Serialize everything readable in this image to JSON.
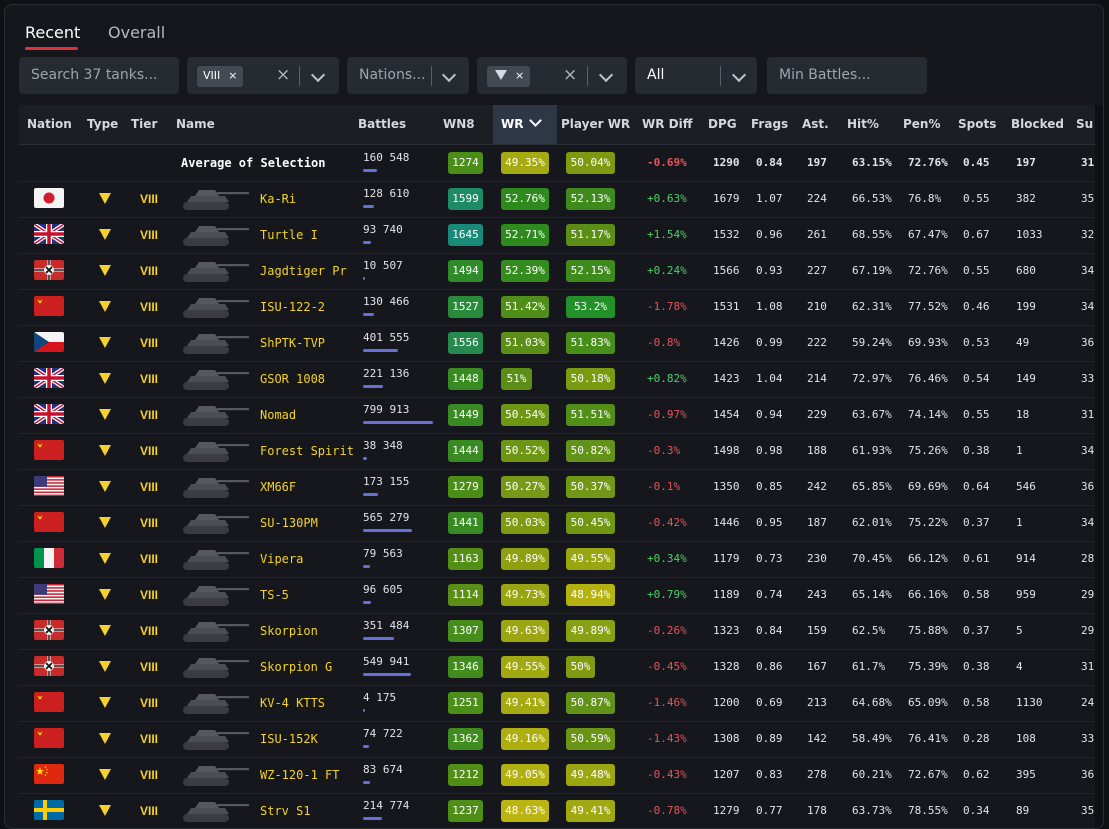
{
  "tabs": [
    "Recent",
    "Overall"
  ],
  "filters": {
    "search_placeholder": "Search 37 tanks...",
    "tier_chip": "VIII",
    "chip_remove": "×",
    "clear": "×",
    "nations_placeholder": "Nations...",
    "type_chip_x": "×",
    "premium_value": "All",
    "min_battles_placeholder": "Min Battles..."
  },
  "columns": [
    "Nation",
    "Type",
    "Tier",
    "Name",
    "Battles",
    "WN8",
    "WR",
    "Player WR",
    "WR Diff",
    "DPG",
    "Frags",
    "Ast.",
    "Hit%",
    "Pen%",
    "Spots",
    "Blocked",
    "Su"
  ],
  "sorted_column": "WR",
  "average": {
    "label": "Average of Selection",
    "battles": "160 548",
    "battles_frac": 0.2,
    "wn8": "1274",
    "wr": "49.35%",
    "pwr": "50.04%",
    "wrdiff": "-0.69%",
    "dpg": "1290",
    "frags": "0.84",
    "ast": "197",
    "hit": "63.15%",
    "pen": "72.76%",
    "spots": "0.45",
    "blocked": "197",
    "su": "31"
  },
  "rows": [
    {
      "nation": "japan",
      "name": "Ka-Ri",
      "tier": "VIII",
      "battles": "128 610",
      "battles_frac": 0.16,
      "wn8": "1599",
      "wn8_color": "#1e8a66",
      "wr": "52.76%",
      "wr_color": "#2f8a1e",
      "pwr": "52.13%",
      "pwr_color": "#3e8a1c",
      "wrdiff": "+0.63%",
      "dpg": "1679",
      "frags": "1.07",
      "ast": "224",
      "hit": "66.53%",
      "pen": "76.8%",
      "spots": "0.55",
      "blocked": "382",
      "su": "35"
    },
    {
      "nation": "uk",
      "name": "Turtle I",
      "tier": "VIII",
      "battles": "93 740",
      "battles_frac": 0.12,
      "wn8": "1645",
      "wn8_color": "#1a8a78",
      "wr": "52.71%",
      "wr_color": "#2f8a1e",
      "pwr": "51.17%",
      "pwr_color": "#5a8e16",
      "wrdiff": "+1.54%",
      "dpg": "1532",
      "frags": "0.96",
      "ast": "261",
      "hit": "68.55%",
      "pen": "67.47%",
      "spots": "0.67",
      "blocked": "1033",
      "su": "32"
    },
    {
      "nation": "germany",
      "name": "Jagdtiger Pr",
      "tier": "VIII",
      "battles": "10 507",
      "battles_frac": 0.013,
      "wn8": "1494",
      "wn8_color": "#2f8a2a",
      "wr": "52.39%",
      "wr_color": "#358c1e",
      "pwr": "52.15%",
      "pwr_color": "#3e8a1c",
      "wrdiff": "+0.24%",
      "dpg": "1566",
      "frags": "0.93",
      "ast": "227",
      "hit": "67.19%",
      "pen": "72.76%",
      "spots": "0.55",
      "blocked": "680",
      "su": "34"
    },
    {
      "nation": "ussr",
      "name": "ISU-122-2",
      "tier": "VIII",
      "battles": "130 466",
      "battles_frac": 0.16,
      "wn8": "1527",
      "wn8_color": "#2a8a3c",
      "wr": "51.42%",
      "wr_color": "#4f8e18",
      "pwr": "53.2%",
      "pwr_color": "#23902a",
      "wrdiff": "-1.78%",
      "dpg": "1531",
      "frags": "1.08",
      "ast": "210",
      "hit": "62.31%",
      "pen": "77.52%",
      "spots": "0.46",
      "blocked": "199",
      "su": "34"
    },
    {
      "nation": "czech",
      "name": "ShPTK-TVP",
      "tier": "VIII",
      "battles": "401 555",
      "battles_frac": 0.5,
      "wn8": "1556",
      "wn8_color": "#26894e",
      "wr": "51.03%",
      "wr_color": "#5a8e16",
      "pwr": "51.83%",
      "pwr_color": "#488e1a",
      "wrdiff": "-0.8%",
      "dpg": "1426",
      "frags": "0.99",
      "ast": "222",
      "hit": "59.24%",
      "pen": "69.93%",
      "spots": "0.53",
      "blocked": "49",
      "su": "36"
    },
    {
      "nation": "uk",
      "name": "GSOR 1008",
      "tier": "VIII",
      "battles": "221 136",
      "battles_frac": 0.28,
      "wn8": "1448",
      "wn8_color": "#3a8a24",
      "wr": "51%",
      "wr_color": "#5a8e16",
      "pwr": "50.18%",
      "pwr_color": "#7a9a12",
      "wrdiff": "+0.82%",
      "dpg": "1423",
      "frags": "1.04",
      "ast": "214",
      "hit": "72.97%",
      "pen": "76.46%",
      "spots": "0.54",
      "blocked": "149",
      "su": "33"
    },
    {
      "nation": "uk",
      "name": "Nomad",
      "tier": "VIII",
      "battles": "799 913",
      "battles_frac": 1.0,
      "wn8": "1449",
      "wn8_color": "#3a8a24",
      "wr": "50.54%",
      "wr_color": "#6c9614",
      "pwr": "51.51%",
      "pwr_color": "#528e18",
      "wrdiff": "-0.97%",
      "dpg": "1454",
      "frags": "0.94",
      "ast": "229",
      "hit": "63.67%",
      "pen": "74.14%",
      "spots": "0.55",
      "blocked": "18",
      "su": "31"
    },
    {
      "nation": "ussr",
      "name": "Forest Spirit",
      "tier": "VIII",
      "battles": "38 348",
      "battles_frac": 0.05,
      "wn8": "1444",
      "wn8_color": "#3a8a24",
      "wr": "50.52%",
      "wr_color": "#6c9614",
      "pwr": "50.82%",
      "pwr_color": "#62921a",
      "wrdiff": "-0.3%",
      "dpg": "1498",
      "frags": "0.98",
      "ast": "188",
      "hit": "61.93%",
      "pen": "75.26%",
      "spots": "0.38",
      "blocked": "1",
      "su": "34"
    },
    {
      "nation": "usa",
      "name": "XM66F",
      "tier": "VIII",
      "battles": "173 155",
      "battles_frac": 0.22,
      "wn8": "1279",
      "wn8_color": "#4a8e18",
      "wr": "50.27%",
      "wr_color": "#78981a",
      "pwr": "50.37%",
      "pwr_color": "#729616",
      "wrdiff": "-0.1%",
      "dpg": "1350",
      "frags": "0.85",
      "ast": "242",
      "hit": "65.85%",
      "pen": "69.69%",
      "spots": "0.64",
      "blocked": "546",
      "su": "36"
    },
    {
      "nation": "ussr",
      "name": "SU-130PM",
      "tier": "VIII",
      "battles": "565 279",
      "battles_frac": 0.7,
      "wn8": "1441",
      "wn8_color": "#3a8a24",
      "wr": "50.03%",
      "wr_color": "#7e9a12",
      "pwr": "50.45%",
      "pwr_color": "#709614",
      "wrdiff": "-0.42%",
      "dpg": "1446",
      "frags": "0.95",
      "ast": "187",
      "hit": "62.01%",
      "pen": "75.22%",
      "spots": "0.37",
      "blocked": "1",
      "su": "34"
    },
    {
      "nation": "italy",
      "name": "Vipera",
      "tier": "VIII",
      "battles": "79 563",
      "battles_frac": 0.1,
      "wn8": "1163",
      "wn8_color": "#548e16",
      "wr": "49.89%",
      "wr_color": "#8ea012",
      "pwr": "49.55%",
      "pwr_color": "#98a612",
      "wrdiff": "+0.34%",
      "dpg": "1179",
      "frags": "0.73",
      "ast": "230",
      "hit": "70.45%",
      "pen": "66.12%",
      "spots": "0.61",
      "blocked": "914",
      "su": "28"
    },
    {
      "nation": "usa",
      "name": "TS-5",
      "tier": "VIII",
      "battles": "96 605",
      "battles_frac": 0.12,
      "wn8": "1114",
      "wn8_color": "#5a8e14",
      "wr": "49.73%",
      "wr_color": "#98a412",
      "pwr": "48.94%",
      "pwr_color": "#b3b210",
      "wrdiff": "+0.79%",
      "dpg": "1189",
      "frags": "0.74",
      "ast": "243",
      "hit": "65.14%",
      "pen": "66.16%",
      "spots": "0.58",
      "blocked": "959",
      "su": "29"
    },
    {
      "nation": "germany",
      "name": "Skorpion",
      "tier": "VIII",
      "battles": "351 484",
      "battles_frac": 0.44,
      "wn8": "1307",
      "wn8_color": "#468e1c",
      "wr": "49.63%",
      "wr_color": "#9ca612",
      "pwr": "49.89%",
      "pwr_color": "#88a014",
      "wrdiff": "-0.26%",
      "dpg": "1323",
      "frags": "0.84",
      "ast": "159",
      "hit": "62.5%",
      "pen": "75.88%",
      "spots": "0.37",
      "blocked": "5",
      "su": "29"
    },
    {
      "nation": "germany",
      "name": "Skorpion G",
      "tier": "VIII",
      "battles": "549 941",
      "battles_frac": 0.69,
      "wn8": "1346",
      "wn8_color": "#428c1e",
      "wr": "49.55%",
      "wr_color": "#a0a812",
      "pwr": "50%",
      "pwr_color": "#809a12",
      "wrdiff": "-0.45%",
      "dpg": "1328",
      "frags": "0.86",
      "ast": "167",
      "hit": "61.7%",
      "pen": "75.39%",
      "spots": "0.38",
      "blocked": "4",
      "su": "31"
    },
    {
      "nation": "ussr",
      "name": "KV-4 KTTS",
      "tier": "VIII",
      "battles": "4 175",
      "battles_frac": 0.006,
      "wn8": "1251",
      "wn8_color": "#4c8e18",
      "wr": "49.41%",
      "wr_color": "#a6aa12",
      "pwr": "50.87%",
      "pwr_color": "#62921a",
      "wrdiff": "-1.46%",
      "dpg": "1200",
      "frags": "0.69",
      "ast": "213",
      "hit": "64.68%",
      "pen": "65.09%",
      "spots": "0.58",
      "blocked": "1130",
      "su": "24"
    },
    {
      "nation": "ussr",
      "name": "ISU-152K",
      "tier": "VIII",
      "battles": "74 722",
      "battles_frac": 0.09,
      "wn8": "1362",
      "wn8_color": "#408c20",
      "wr": "49.16%",
      "wr_color": "#aeae10",
      "pwr": "50.59%",
      "pwr_color": "#6a9416",
      "wrdiff": "-1.43%",
      "dpg": "1308",
      "frags": "0.89",
      "ast": "142",
      "hit": "58.49%",
      "pen": "76.41%",
      "spots": "0.28",
      "blocked": "108",
      "su": "33"
    },
    {
      "nation": "china",
      "name": "WZ-120-1 FT",
      "tier": "VIII",
      "battles": "83 674",
      "battles_frac": 0.1,
      "wn8": "1212",
      "wn8_color": "#508e16",
      "wr": "49.05%",
      "wr_color": "#b2b010",
      "pwr": "49.48%",
      "pwr_color": "#9ca612",
      "wrdiff": "-0.43%",
      "dpg": "1207",
      "frags": "0.83",
      "ast": "278",
      "hit": "60.21%",
      "pen": "72.67%",
      "spots": "0.62",
      "blocked": "395",
      "su": "36"
    },
    {
      "nation": "sweden",
      "name": "Strv S1",
      "tier": "VIII",
      "battles": "214 774",
      "battles_frac": 0.27,
      "wn8": "1237",
      "wn8_color": "#4e8e16",
      "wr": "48.63%",
      "wr_color": "#bcb410",
      "pwr": "49.41%",
      "pwr_color": "#a0a812",
      "wrdiff": "-0.78%",
      "dpg": "1279",
      "frags": "0.77",
      "ast": "178",
      "hit": "63.73%",
      "pen": "78.55%",
      "spots": "0.34",
      "blocked": "89",
      "su": "35"
    }
  ]
}
